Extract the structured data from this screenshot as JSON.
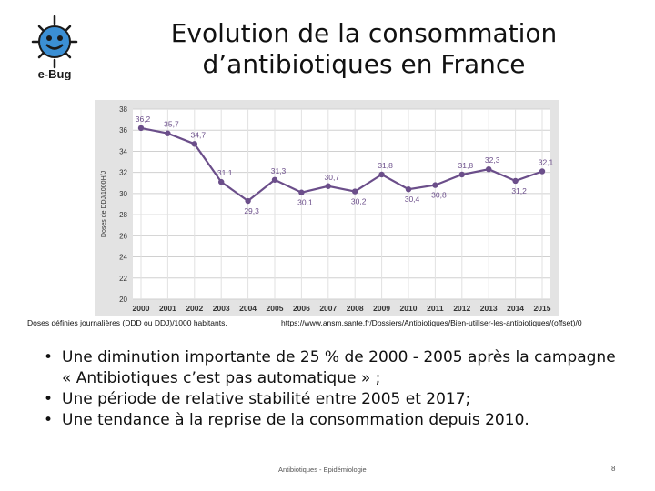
{
  "title": {
    "line1": "Evolution de la consommation",
    "line2": "d’antibiotiques en France"
  },
  "logo": {
    "text": "e-Bug",
    "icon": "smiling-bug-logo"
  },
  "chart_data": {
    "type": "line",
    "title": "",
    "xlabel": "",
    "ylabel": "Doses de DDJ/1000H/J",
    "x": [
      "2000",
      "2001",
      "2002",
      "2003",
      "2004",
      "2005",
      "2006",
      "2007",
      "2008",
      "2009",
      "2010",
      "2011",
      "2012",
      "2013",
      "2014",
      "2015"
    ],
    "values": [
      36.2,
      35.7,
      34.7,
      31.1,
      29.3,
      31.3,
      30.1,
      30.7,
      30.2,
      31.8,
      30.4,
      30.8,
      31.8,
      32.3,
      31.2,
      32.1
    ],
    "data_labels": [
      "36,2",
      "35,7",
      "34,7",
      "31,1",
      "29,3",
      "31,3",
      "30,1",
      "30,7",
      "30,2",
      "31,8",
      "30,4",
      "30,8",
      "31,8",
      "32,3",
      "31,2",
      "32,1"
    ],
    "yticks": [
      "20",
      "22",
      "24",
      "26",
      "28",
      "30",
      "32",
      "34",
      "36",
      "38"
    ],
    "ylim": [
      20,
      38
    ],
    "grid": true,
    "line_color": "#6b4e8a"
  },
  "notes": {
    "left": "Doses définies journalières (DDD ou DDJ)/1000 habitants.",
    "right": "https://www.ansm.sante.fr/Dossiers/Antibiotiques/Bien-utiliser-les-antibiotiques/(offset)/0"
  },
  "bullets": [
    "Une diminution importante de 25 % de 2000 - 2005 après la campagne « Antibiotiques c’est pas automatique » ;",
    "Une période de relative stabilité entre 2005 et 2017;",
    "Une tendance à la reprise de la consommation depuis 2010."
  ],
  "footer": {
    "text": "Antibiotiques - Epidémiologie",
    "page": "8"
  }
}
